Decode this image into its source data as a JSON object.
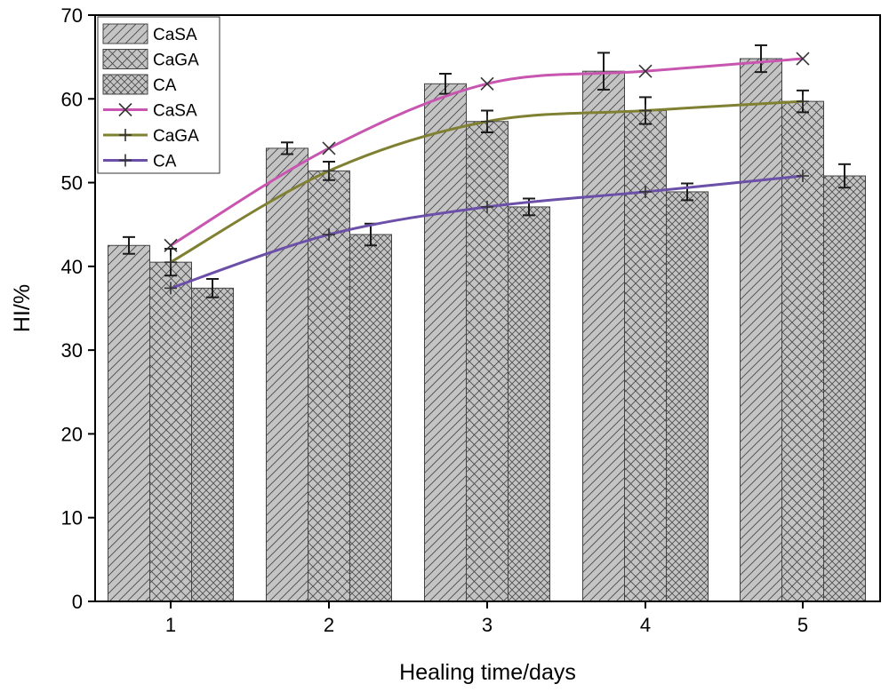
{
  "chart_data": {
    "type": "bar+line",
    "title": "",
    "xlabel": "Healing time/days",
    "ylabel": "HI/%",
    "categories": [
      "1",
      "2",
      "3",
      "4",
      "5"
    ],
    "ylim": [
      0,
      70
    ],
    "yticks": [
      "0",
      "10",
      "20",
      "30",
      "40",
      "50",
      "60",
      "70"
    ],
    "bar_series": [
      {
        "name": "CaSA",
        "pattern": "diagonal",
        "values": [
          42.5,
          54.1,
          61.8,
          63.3,
          64.8
        ],
        "errors": [
          1.0,
          0.7,
          1.2,
          2.2,
          1.6
        ]
      },
      {
        "name": "CaGA",
        "pattern": "crosshatch",
        "values": [
          40.5,
          51.4,
          57.3,
          58.6,
          59.7
        ],
        "errors": [
          1.6,
          1.1,
          1.3,
          1.6,
          1.3
        ]
      },
      {
        "name": "CA",
        "pattern": "crosshatch",
        "values": [
          37.4,
          43.8,
          47.1,
          48.9,
          50.8
        ],
        "errors": [
          1.1,
          1.3,
          1.0,
          1.0,
          1.4
        ]
      }
    ],
    "line_series": [
      {
        "name": "CaSA",
        "marker": "×",
        "color": "#c855b0",
        "values": [
          42.5,
          54.1,
          61.8,
          63.3,
          64.8
        ]
      },
      {
        "name": "CaGA",
        "marker": "+",
        "color": "#808033",
        "values": [
          40.5,
          51.4,
          57.3,
          58.6,
          59.7
        ]
      },
      {
        "name": "CA",
        "marker": "+",
        "color": "#6b4fa8",
        "values": [
          37.4,
          43.8,
          47.1,
          48.9,
          50.8
        ]
      }
    ],
    "legend_position": "top-left",
    "colors": {
      "bar_fill": "#c4c4c4",
      "bar_stroke": "#444444",
      "hatch": "#4a4a4a",
      "error_bar": "#1a1a1a"
    }
  }
}
